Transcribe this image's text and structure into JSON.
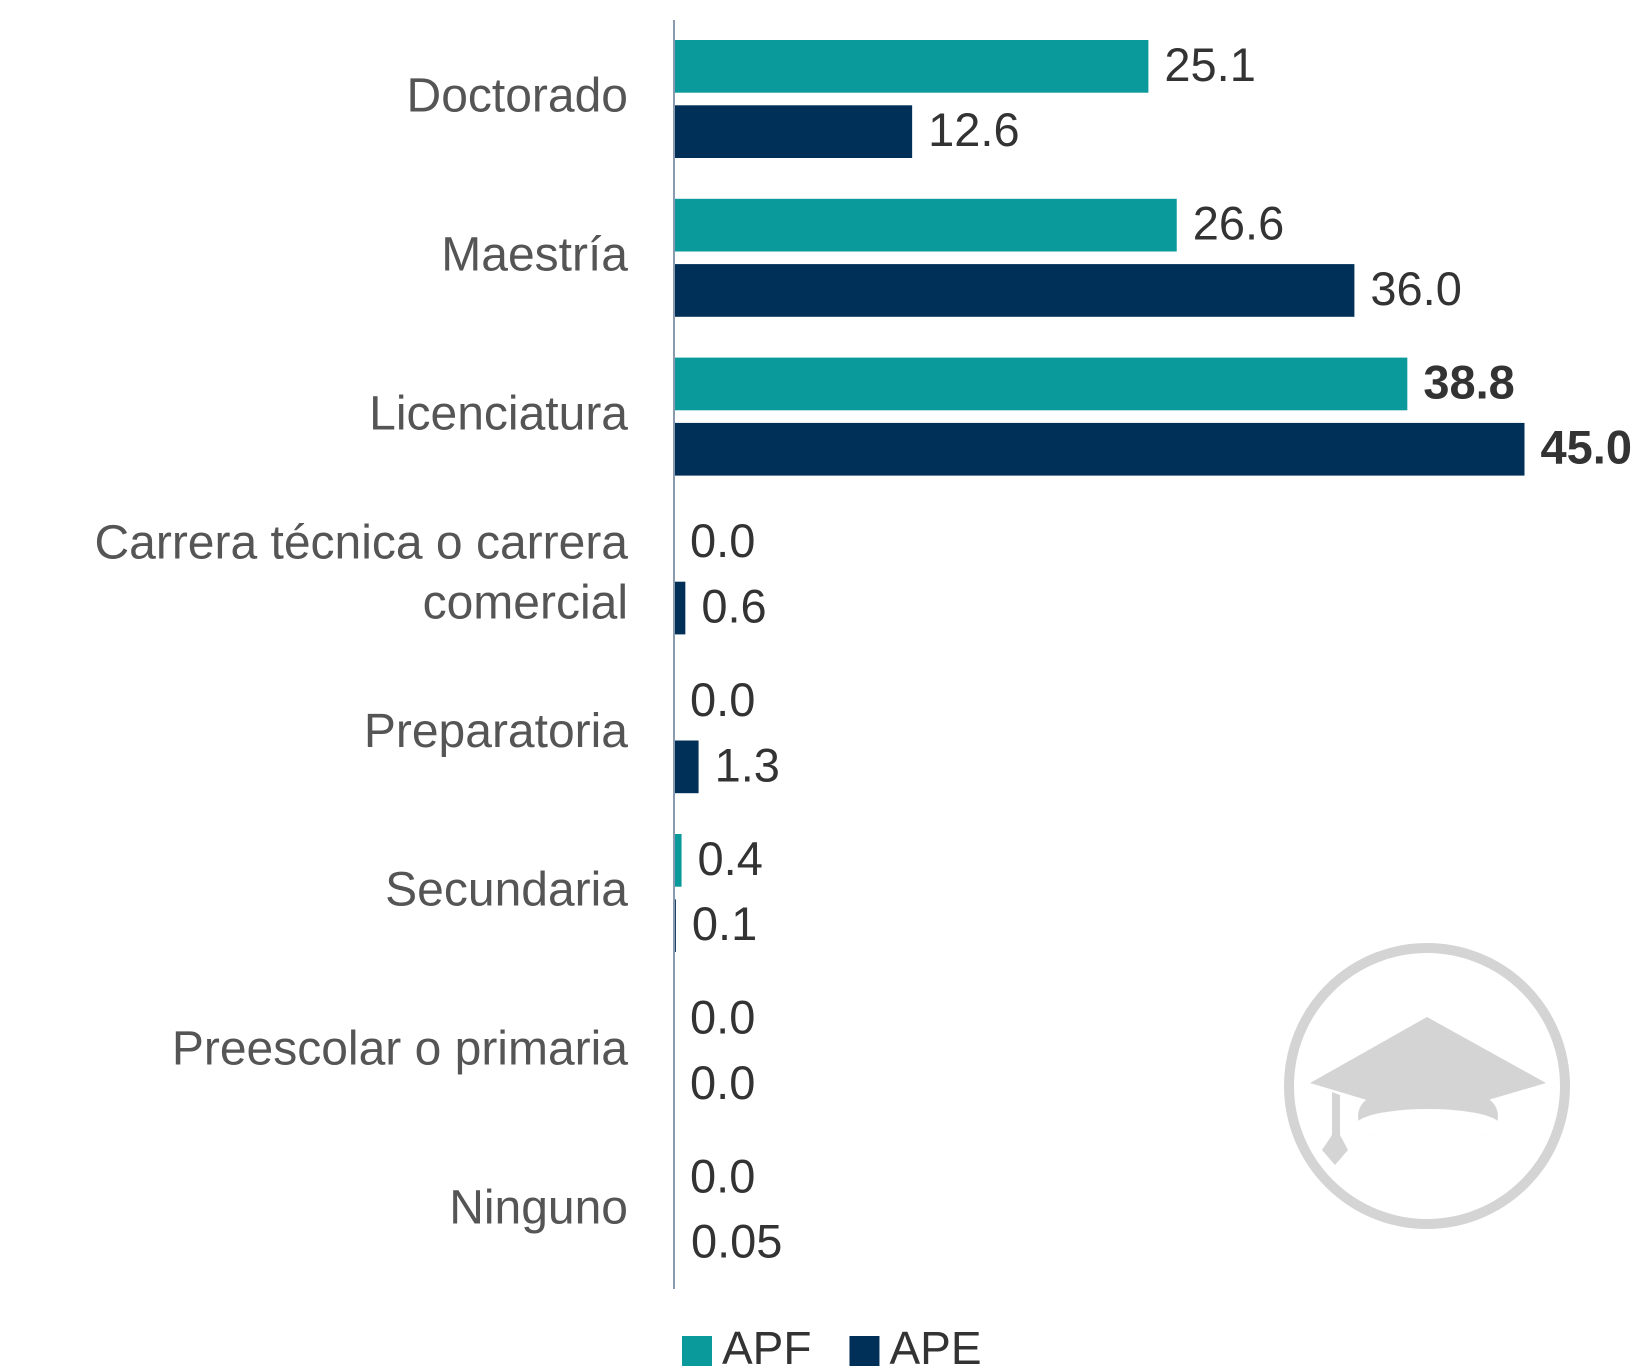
{
  "chart_data": {
    "type": "barh",
    "categories": [
      "Doctorado",
      "Maestría",
      "Licenciatura",
      "Carrera técnica o carrera comercial",
      "Preparatoria",
      "Secundaria",
      "Preescolar o primaria",
      "Ninguno"
    ],
    "series": [
      {
        "name": "APF",
        "color": "#0a9a9b",
        "values": [
          25.1,
          26.6,
          38.8,
          0.0,
          0.0,
          0.4,
          0.0,
          0.0
        ],
        "value_labels": [
          "25.1",
          "26.6",
          "38.8",
          "0.0",
          "0.0",
          "0.4",
          "0.0",
          "0.0"
        ]
      },
      {
        "name": "APE",
        "color": "#003057",
        "values": [
          12.6,
          36.0,
          45.0,
          0.6,
          1.3,
          0.1,
          0.0,
          0.05
        ],
        "value_labels": [
          "12.6",
          "36.0",
          "45.0",
          "0.6",
          "1.3",
          "0.1",
          "0.0",
          "0.05"
        ]
      }
    ],
    "xlim": [
      0,
      50
    ],
    "legend": "bottom"
  }
}
